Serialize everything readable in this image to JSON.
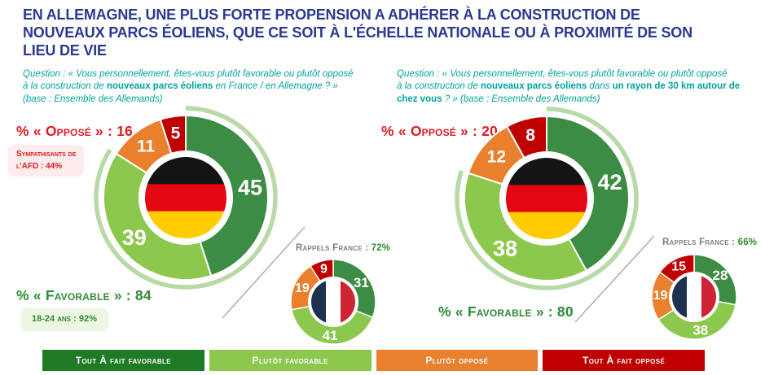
{
  "colors": {
    "title_blue": "#2b3990",
    "teal": "#00a29b",
    "red_text": "#dd1b21",
    "green_text": "#2e8b33",
    "gray_text": "#7f7f7f",
    "halo_green": "#b9d9a8",
    "line_gray": "#9a9a9a",
    "pink_bg": "#fdecec",
    "lightgreen_bg": "#edf6e3",
    "segment_colors": [
      "#3d8c43",
      "#8cc84e",
      "#e8802e",
      "#c00000"
    ],
    "legend_colors": [
      "#1e7a25",
      "#8cc84e",
      "#e8802e",
      "#c00000"
    ],
    "flag_germany": [
      "#141414",
      "#e30613",
      "#ffcc00"
    ],
    "flag_france": [
      "#1e3250",
      "#ffffff",
      "#ce2334"
    ]
  },
  "title": "EN ALLEMAGNE, UNE PLUS FORTE PROPENSION A ADHÉRER À LA CONSTRUCTION DE\nNOUVEAUX PARCS ÉOLIENS, QUE CE SOIT À L'ÉCHELLE NATIONALE OU À PROXIMITÉ DE SON\nLIEU DE VIE",
  "panels": {
    "left": {
      "question": [
        {
          "t": "Question : « Vous personnellement, êtes-vous plutôt favorable ou plutôt opposé\nà la construction de "
        },
        {
          "t": "nouveaux parcs éoliens",
          "b": true
        },
        {
          "t": " en France / en Allemagne ? »\n(base : Ensemble des Allemands)"
        }
      ],
      "oppose_label": "% « Opposé » : 16",
      "oppose_note": "Sympathisants de\nl'AFD : 44%",
      "favorable_label": "% « Favorable » : 84",
      "favorable_note": "18-24 ans : 92%",
      "rappel_prefix": "Rappels France : ",
      "rappel_value": "72%"
    },
    "right": {
      "question": [
        {
          "t": "Question : « Vous personnellement, êtes-vous plutôt favorable ou plutôt opposé\nà la construction de "
        },
        {
          "t": "nouveaux parcs éoliens",
          "b": true
        },
        {
          "t": " dans "
        },
        {
          "t": "un rayon de 30 km autour de\nchez vous",
          "b": true
        },
        {
          "t": " ? » (base : Ensemble des Allemands)"
        }
      ],
      "oppose_label": "% « Opposé » : 20",
      "favorable_label": "% « Favorable » : 80",
      "rappel_prefix": "Rappels France : ",
      "rappel_value": "66%"
    }
  },
  "legend": [
    "Tout À fait favorable",
    "Plutôt favorable",
    "Plutôt opposé",
    "Tout À fait opposé"
  ],
  "chart_data": [
    {
      "type": "donut",
      "name": "allemagne-echelle-nationale",
      "categories": [
        "Tout à fait favorable",
        "Plutôt favorable",
        "Plutôt opposé",
        "Tout à fait opposé"
      ],
      "values": [
        45,
        39,
        11,
        5
      ],
      "favorable_total": 84,
      "oppose_total": 16,
      "center_flag": "germany",
      "annotations": [
        "Sympathisants de l'AFD : 44%",
        "18-24 ans : 92%"
      ]
    },
    {
      "type": "donut",
      "name": "rappel-france-echelle-nationale",
      "categories": [
        "Tout à fait favorable",
        "Plutôt favorable",
        "Plutôt opposé",
        "Tout à fait opposé"
      ],
      "values": [
        31,
        41,
        19,
        9
      ],
      "favorable_total": 72,
      "center_flag": "france"
    },
    {
      "type": "donut",
      "name": "allemagne-rayon-30km",
      "categories": [
        "Tout à fait favorable",
        "Plutôt favorable",
        "Plutôt opposé",
        "Tout à fait opposé"
      ],
      "values": [
        42,
        38,
        12,
        8
      ],
      "favorable_total": 80,
      "oppose_total": 20,
      "center_flag": "germany"
    },
    {
      "type": "donut",
      "name": "rappel-france-rayon-30km",
      "categories": [
        "Tout à fait favorable",
        "Plutôt favorable",
        "Plutôt opposé",
        "Tout à fait opposé"
      ],
      "values": [
        28,
        38,
        19,
        15
      ],
      "favorable_total": 66,
      "center_flag": "france"
    }
  ]
}
